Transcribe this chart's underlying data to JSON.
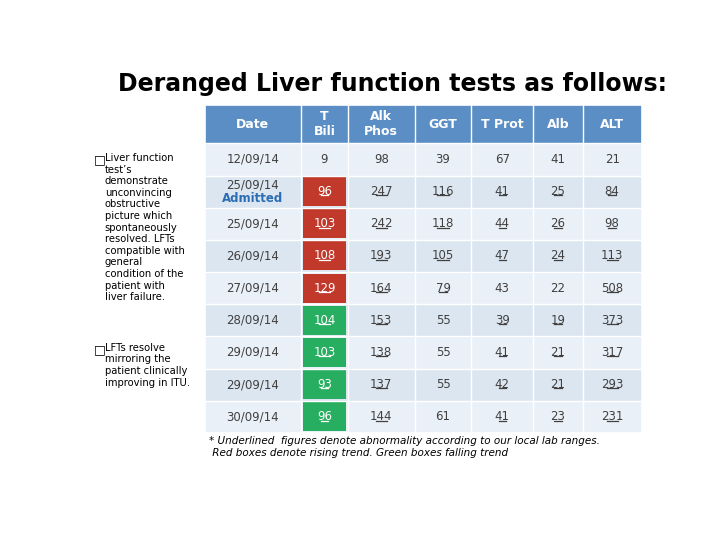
{
  "title": "Deranged Liver function tests as follows:",
  "headers": [
    "Date",
    "T\nBili",
    "Alk\nPhos",
    "GGT",
    "T Prot",
    "Alb",
    "ALT"
  ],
  "rows": [
    [
      "12/09/14",
      "9",
      "98",
      "39",
      "67",
      "41",
      "21"
    ],
    [
      "25/09/14",
      "96",
      "247",
      "116",
      "41",
      "25",
      "84"
    ],
    [
      "25/09/14",
      "103",
      "242",
      "118",
      "44",
      "26",
      "98"
    ],
    [
      "26/09/14",
      "108",
      "193",
      "105",
      "47",
      "24",
      "113"
    ],
    [
      "27/09/14",
      "129",
      "164",
      "79",
      "43",
      "22",
      "508"
    ],
    [
      "28/09/14",
      "104",
      "153",
      "55",
      "39",
      "19",
      "373"
    ],
    [
      "29/09/14",
      "103",
      "138",
      "55",
      "41",
      "21",
      "317"
    ],
    [
      "29/09/14",
      "93",
      "137",
      "55",
      "42",
      "21",
      "293"
    ],
    [
      "30/09/14",
      "96",
      "144",
      "61",
      "41",
      "23",
      "231"
    ]
  ],
  "cell_colors": [
    [
      "white",
      "white",
      "white",
      "white",
      "white",
      "white",
      "white"
    ],
    [
      "white",
      "red",
      "white",
      "white",
      "white",
      "white",
      "white"
    ],
    [
      "white",
      "red",
      "white",
      "white",
      "white",
      "white",
      "white"
    ],
    [
      "white",
      "red",
      "white",
      "white",
      "white",
      "white",
      "white"
    ],
    [
      "white",
      "red",
      "white",
      "white",
      "white",
      "white",
      "white"
    ],
    [
      "white",
      "green",
      "white",
      "white",
      "white",
      "white",
      "white"
    ],
    [
      "white",
      "green",
      "white",
      "white",
      "white",
      "white",
      "white"
    ],
    [
      "white",
      "green",
      "white",
      "white",
      "white",
      "white",
      "white"
    ],
    [
      "white",
      "green",
      "white",
      "white",
      "white",
      "white",
      "white"
    ]
  ],
  "underline_cells": [
    [
      false,
      false,
      false,
      false,
      false,
      false,
      false
    ],
    [
      false,
      true,
      true,
      true,
      true,
      true,
      true
    ],
    [
      false,
      true,
      true,
      true,
      true,
      true,
      true
    ],
    [
      false,
      true,
      true,
      true,
      true,
      true,
      true
    ],
    [
      false,
      true,
      true,
      true,
      false,
      false,
      true
    ],
    [
      false,
      true,
      true,
      false,
      true,
      true,
      true
    ],
    [
      false,
      true,
      true,
      false,
      true,
      true,
      true
    ],
    [
      false,
      true,
      true,
      false,
      true,
      true,
      true
    ],
    [
      false,
      true,
      true,
      false,
      true,
      true,
      true
    ]
  ],
  "header_color": "#5b8ec4",
  "row_alt_color": "#dce6f1",
  "row_white_color": "#eaf0f8",
  "red_box_color": "#c0392b",
  "green_box_color": "#27ae60",
  "text_color_header": "white",
  "text_color_normal": "#404040",
  "admitted_color": "#2a6db5",
  "footnote": "* Underlined  figures denote abnormality according to our local lab ranges.\n Red boxes denote rising trend. Green boxes falling trend",
  "left_bullets": [
    "Liver function\ntest’s\ndemonstrate\nunconvincing\nobstructive\npicture which\nspontaneously\nresolved. LFTs\ncompatible with\ngeneral\ncondition of the\npatient with\nliver failure.",
    "LFTs resolve\nmirroring the\npatient clinically\nimproving in ITU."
  ]
}
